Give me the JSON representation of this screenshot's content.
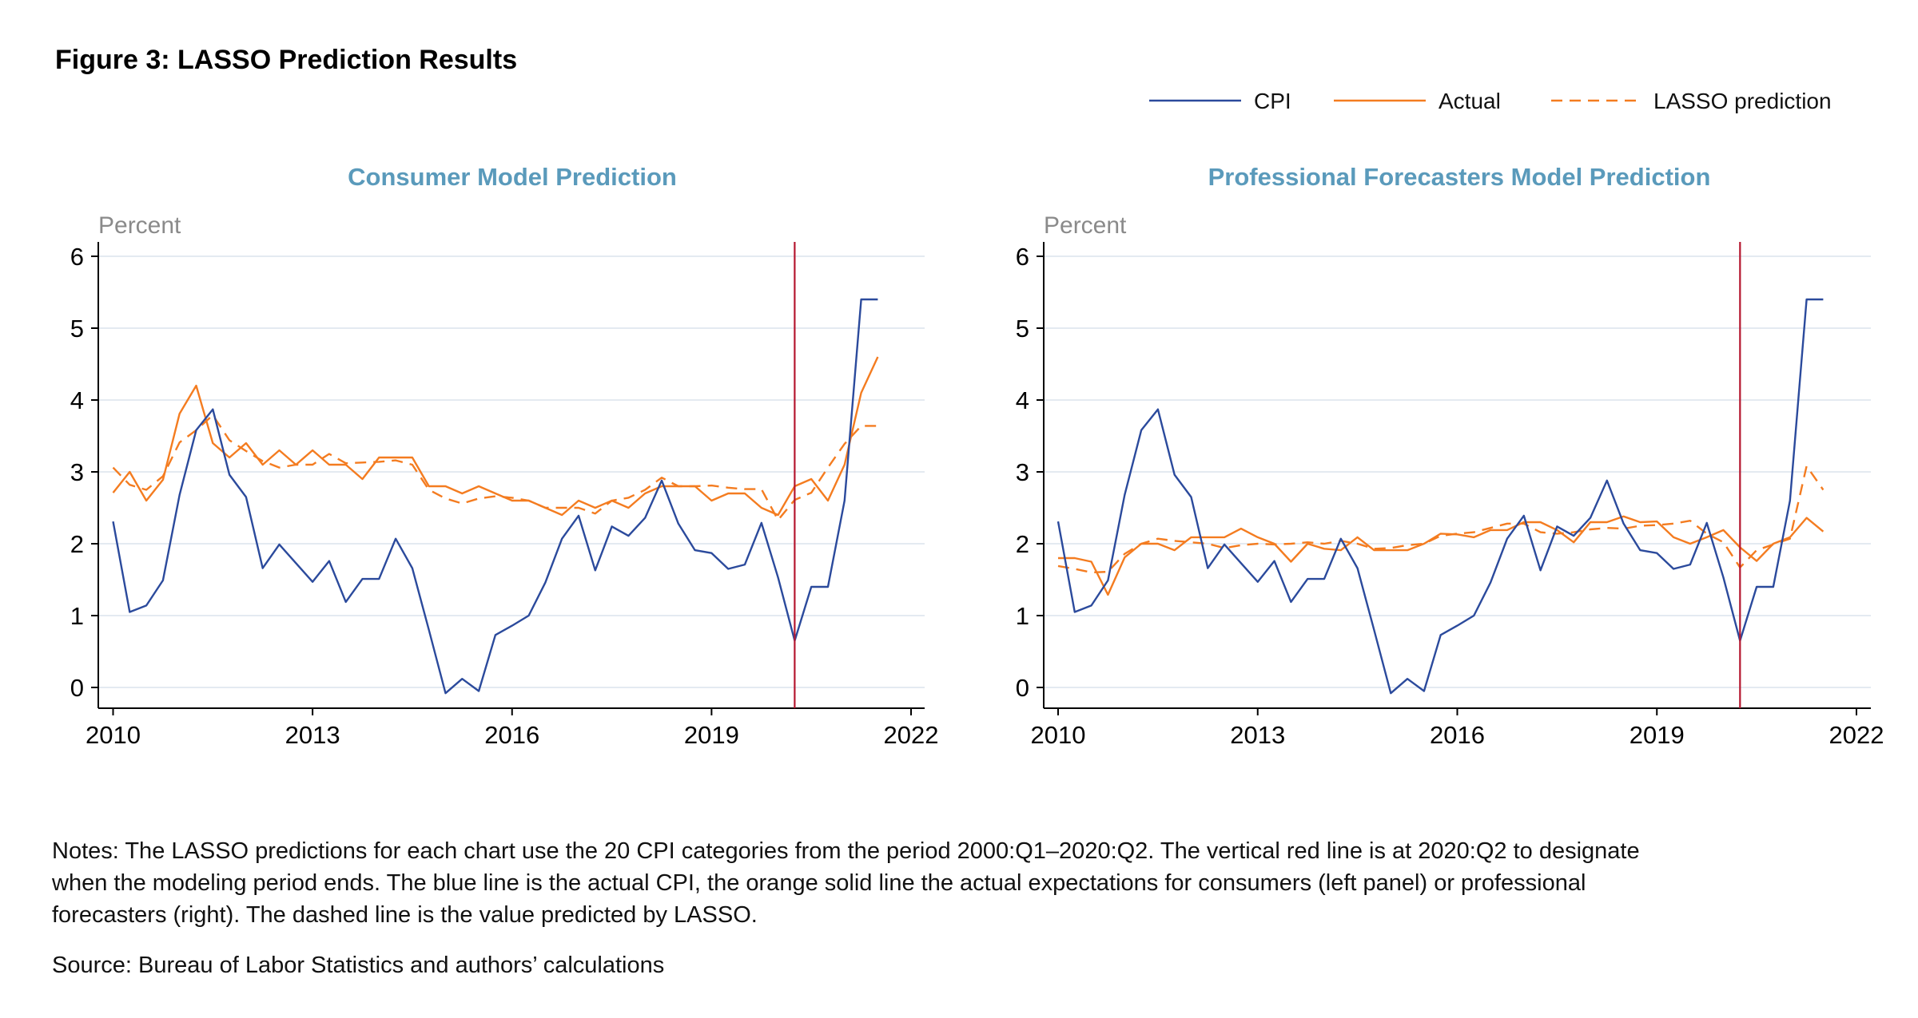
{
  "figure_title": "Figure 3: LASSO Prediction Results",
  "legend": [
    {
      "label": "CPI",
      "color": "#2b4a9c",
      "style": "solid"
    },
    {
      "label": "Actual",
      "color": "#f47c20",
      "style": "solid"
    },
    {
      "label": "LASSO prediction",
      "color": "#f47c20",
      "style": "dashed"
    }
  ],
  "notes": [
    "Notes: The LASSO predictions for each chart use the 20 CPI categories from the period 2000:Q1–2020:Q2. The vertical red line is at 2020:Q2 to designate",
    "when the modeling period ends. The blue line is the actual CPI, the orange solid line the actual expectations for consumers (left panel) or professional",
    "forecasters (right). The dashed line is the value predicted by LASSO."
  ],
  "source": "Source: Bureau of Labor Statistics and authors’ calculations",
  "colors": {
    "cpi": "#2b4a9c",
    "expectations": "#f47c20",
    "vline": "#b5172f",
    "panel_title": "#5a9abb",
    "grid": "#e4eaf1"
  },
  "chart_data": [
    {
      "type": "line",
      "title": "Consumer Model Prediction",
      "ylabel": "Percent",
      "xlim": [
        2010,
        2022
      ],
      "ylim": [
        0,
        6
      ],
      "xticks": [
        "2010",
        "2013",
        "2016",
        "2019",
        "2022"
      ],
      "yticks": [
        "0",
        "1",
        "2",
        "3",
        "4",
        "5",
        "6"
      ],
      "grid": true,
      "vline": 2020.25,
      "x_start": 2010,
      "x_step": 0.25,
      "series": [
        {
          "name": "CPI",
          "values": [
            2.31,
            1.05,
            1.14,
            1.49,
            2.68,
            3.58,
            3.87,
            2.96,
            2.65,
            1.66,
            1.99,
            1.73,
            1.47,
            1.76,
            1.19,
            1.51,
            1.51,
            2.07,
            1.66,
            0.8,
            -0.08,
            0.12,
            -0.05,
            0.73,
            0.86,
            1.0,
            1.46,
            2.07,
            2.39,
            1.63,
            2.24,
            2.11,
            2.36,
            2.88,
            2.28,
            1.91,
            1.87,
            1.65,
            1.71,
            2.29,
            1.53,
            0.65,
            1.4,
            1.4,
            2.6,
            5.4,
            5.4
          ]
        },
        {
          "name": "Actual",
          "values": [
            2.71,
            3.0,
            2.6,
            2.89,
            3.81,
            4.2,
            3.4,
            3.2,
            3.4,
            3.1,
            3.3,
            3.1,
            3.3,
            3.1,
            3.1,
            2.9,
            3.2,
            3.2,
            3.2,
            2.8,
            2.8,
            2.7,
            2.8,
            2.7,
            2.6,
            2.6,
            2.5,
            2.4,
            2.6,
            2.5,
            2.6,
            2.5,
            2.7,
            2.8,
            2.8,
            2.8,
            2.6,
            2.7,
            2.7,
            2.5,
            2.4,
            2.8,
            2.9,
            2.6,
            3.1,
            4.1,
            4.6
          ]
        },
        {
          "name": "LASSO prediction",
          "values": [
            3.06,
            2.82,
            2.75,
            2.94,
            3.41,
            3.58,
            3.79,
            3.44,
            3.29,
            3.15,
            3.06,
            3.1,
            3.1,
            3.25,
            3.12,
            3.13,
            3.14,
            3.16,
            3.1,
            2.75,
            2.63,
            2.56,
            2.63,
            2.66,
            2.64,
            2.6,
            2.5,
            2.5,
            2.5,
            2.42,
            2.6,
            2.64,
            2.75,
            2.92,
            2.8,
            2.8,
            2.81,
            2.78,
            2.76,
            2.76,
            2.33,
            2.61,
            2.71,
            3.06,
            3.39,
            3.64,
            3.64
          ]
        }
      ]
    },
    {
      "type": "line",
      "title": "Professional Forecasters Model Prediction",
      "ylabel": "Percent",
      "xlim": [
        2010,
        2022
      ],
      "ylim": [
        0,
        6
      ],
      "xticks": [
        "2010",
        "2013",
        "2016",
        "2019",
        "2022"
      ],
      "yticks": [
        "0",
        "1",
        "2",
        "3",
        "4",
        "5",
        "6"
      ],
      "grid": true,
      "vline": 2020.25,
      "x_start": 2010,
      "x_step": 0.25,
      "series": [
        {
          "name": "CPI",
          "values": [
            2.31,
            1.05,
            1.14,
            1.49,
            2.68,
            3.58,
            3.87,
            2.96,
            2.65,
            1.66,
            1.99,
            1.73,
            1.47,
            1.76,
            1.19,
            1.51,
            1.51,
            2.07,
            1.66,
            0.8,
            -0.08,
            0.12,
            -0.05,
            0.73,
            0.86,
            1.0,
            1.46,
            2.07,
            2.39,
            1.63,
            2.24,
            2.11,
            2.36,
            2.88,
            2.28,
            1.91,
            1.87,
            1.65,
            1.71,
            2.29,
            1.53,
            0.65,
            1.4,
            1.4,
            2.6,
            5.4,
            5.4
          ]
        },
        {
          "name": "Actual",
          "values": [
            1.8,
            1.8,
            1.75,
            1.29,
            1.81,
            2.0,
            2.0,
            1.91,
            2.09,
            2.09,
            2.09,
            2.21,
            2.09,
            2.0,
            1.75,
            2.0,
            1.93,
            1.91,
            2.09,
            1.91,
            1.91,
            1.91,
            2.0,
            2.14,
            2.13,
            2.09,
            2.19,
            2.19,
            2.3,
            2.3,
            2.19,
            2.02,
            2.3,
            2.3,
            2.38,
            2.3,
            2.31,
            2.09,
            2.0,
            2.09,
            2.19,
            1.95,
            1.76,
            2.0,
            2.09,
            2.36,
            2.17
          ]
        },
        {
          "name": "LASSO prediction",
          "values": [
            1.69,
            1.65,
            1.6,
            1.61,
            1.86,
            2.0,
            2.07,
            2.04,
            2.02,
            2.0,
            1.94,
            1.98,
            2.0,
            1.99,
            2.0,
            2.02,
            2.0,
            2.04,
            2.0,
            1.93,
            1.94,
            1.98,
            2.0,
            2.11,
            2.14,
            2.16,
            2.22,
            2.28,
            2.28,
            2.16,
            2.14,
            2.16,
            2.2,
            2.22,
            2.21,
            2.25,
            2.26,
            2.28,
            2.32,
            2.14,
            2.02,
            1.67,
            1.91,
            1.99,
            2.07,
            3.08,
            2.75
          ]
        }
      ]
    }
  ]
}
